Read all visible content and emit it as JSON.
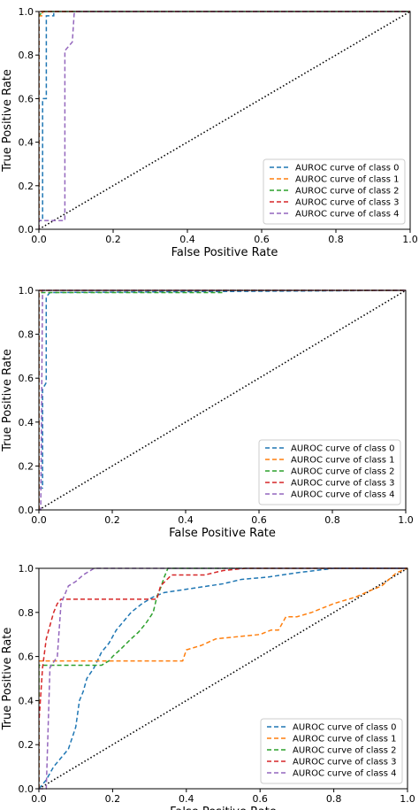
{
  "colors": {
    "class0": "#1f77b4",
    "class1": "#ff7f0e",
    "class2": "#2ca02c",
    "class3": "#d62728",
    "class4": "#9467bd",
    "diagonal": "#000000"
  },
  "chart_data": [
    {
      "type": "line",
      "xlabel": "False Positive Rate",
      "ylabel": "True Positive Rate",
      "xlim": [
        0,
        1
      ],
      "ylim": [
        0,
        1
      ],
      "xticks": [
        "0.0",
        "0.2",
        "0.4",
        "0.6",
        "0.8",
        "1.0"
      ],
      "yticks": [
        "0.0",
        "0.2",
        "0.4",
        "0.6",
        "0.8",
        "1.0"
      ],
      "legend_position": "lower-right",
      "series": [
        {
          "name": "AUROC curve of class 0",
          "color": "#1f77b4",
          "points": [
            [
              0,
              0
            ],
            [
              0,
              0.04
            ],
            [
              0.01,
              0.04
            ],
            [
              0.01,
              0.6
            ],
            [
              0.02,
              0.6
            ],
            [
              0.02,
              0.98
            ],
            [
              0.04,
              0.98
            ],
            [
              0.04,
              1
            ],
            [
              1,
              1
            ]
          ]
        },
        {
          "name": "AUROC curve of class 1",
          "color": "#ff7f0e",
          "points": [
            [
              0,
              0
            ],
            [
              0,
              0.98
            ],
            [
              0.01,
              0.98
            ],
            [
              0.01,
              1
            ],
            [
              1,
              1
            ]
          ]
        },
        {
          "name": "AUROC curve of class 2",
          "color": "#2ca02c",
          "points": [
            [
              0,
              0
            ],
            [
              0,
              0.98
            ],
            [
              0.005,
              0.99
            ],
            [
              0.01,
              1
            ],
            [
              1,
              1
            ]
          ]
        },
        {
          "name": "AUROC curve of class 3",
          "color": "#d62728",
          "points": [
            [
              0,
              0
            ],
            [
              0,
              1
            ],
            [
              1,
              1
            ]
          ]
        },
        {
          "name": "AUROC curve of class 4",
          "color": "#9467bd",
          "points": [
            [
              0,
              0
            ],
            [
              0,
              0.04
            ],
            [
              0.07,
              0.04
            ],
            [
              0.07,
              0.82
            ],
            [
              0.09,
              0.86
            ],
            [
              0.095,
              0.99
            ],
            [
              0.1,
              1
            ],
            [
              1,
              1
            ]
          ]
        }
      ]
    },
    {
      "type": "line",
      "xlabel": "False Positive Rate",
      "ylabel": "True Positive Rate",
      "xlim": [
        0,
        1
      ],
      "ylim": [
        0,
        1
      ],
      "xticks": [
        "0.0",
        "0.2",
        "0.4",
        "0.6",
        "0.8",
        "1.0"
      ],
      "yticks": [
        "0.0",
        "0.2",
        "0.4",
        "0.6",
        "0.8",
        "1.0"
      ],
      "legend_position": "lower-right",
      "series": [
        {
          "name": "AUROC curve of class 0",
          "color": "#1f77b4",
          "points": [
            [
              0,
              0
            ],
            [
              0,
              0.1
            ],
            [
              0.01,
              0.1
            ],
            [
              0.01,
              0.55
            ],
            [
              0.02,
              0.58
            ],
            [
              0.02,
              0.97
            ],
            [
              0.03,
              0.99
            ],
            [
              1,
              1
            ]
          ]
        },
        {
          "name": "AUROC curve of class 1",
          "color": "#ff7f0e",
          "points": [
            [
              0,
              0
            ],
            [
              0,
              0.99
            ],
            [
              0.01,
              1
            ],
            [
              1,
              1
            ]
          ]
        },
        {
          "name": "AUROC curve of class 2",
          "color": "#2ca02c",
          "points": [
            [
              0,
              0
            ],
            [
              0,
              0.99
            ],
            [
              0.5,
              0.99
            ],
            [
              0.5,
              1
            ],
            [
              1,
              1
            ]
          ]
        },
        {
          "name": "AUROC curve of class 3",
          "color": "#d62728",
          "points": [
            [
              0,
              0
            ],
            [
              0,
              1
            ],
            [
              1,
              1
            ]
          ]
        },
        {
          "name": "AUROC curve of class 4",
          "color": "#9467bd",
          "points": [
            [
              0,
              0
            ],
            [
              0.005,
              0
            ],
            [
              0.01,
              1
            ],
            [
              1,
              1
            ]
          ]
        }
      ]
    },
    {
      "type": "line",
      "xlabel": "False Positive Rate",
      "ylabel": "True Positive Rate",
      "xlim": [
        0,
        1
      ],
      "ylim": [
        0,
        1
      ],
      "xticks": [
        "0.0",
        "0.2",
        "0.4",
        "0.6",
        "0.8",
        "1.0"
      ],
      "yticks": [
        "0.0",
        "0.2",
        "0.4",
        "0.6",
        "0.8",
        "1.0"
      ],
      "legend_position": "lower-right",
      "series": [
        {
          "name": "AUROC curve of class 0",
          "color": "#1f77b4",
          "points": [
            [
              0,
              0
            ],
            [
              0.02,
              0.04
            ],
            [
              0.04,
              0.1
            ],
            [
              0.06,
              0.14
            ],
            [
              0.08,
              0.18
            ],
            [
              0.1,
              0.28
            ],
            [
              0.11,
              0.4
            ],
            [
              0.12,
              0.44
            ],
            [
              0.13,
              0.5
            ],
            [
              0.15,
              0.55
            ],
            [
              0.17,
              0.62
            ],
            [
              0.19,
              0.66
            ],
            [
              0.21,
              0.72
            ],
            [
              0.23,
              0.76
            ],
            [
              0.25,
              0.8
            ],
            [
              0.28,
              0.84
            ],
            [
              0.31,
              0.87
            ],
            [
              0.34,
              0.89
            ],
            [
              0.38,
              0.9
            ],
            [
              0.42,
              0.91
            ],
            [
              0.46,
              0.92
            ],
            [
              0.5,
              0.93
            ],
            [
              0.55,
              0.95
            ],
            [
              0.62,
              0.96
            ],
            [
              0.7,
              0.98
            ],
            [
              0.8,
              1
            ],
            [
              1,
              1
            ]
          ]
        },
        {
          "name": "AUROC curve of class 1",
          "color": "#ff7f0e",
          "points": [
            [
              0,
              0
            ],
            [
              0,
              0.58
            ],
            [
              0.39,
              0.58
            ],
            [
              0.4,
              0.63
            ],
            [
              0.44,
              0.65
            ],
            [
              0.48,
              0.68
            ],
            [
              0.54,
              0.69
            ],
            [
              0.6,
              0.7
            ],
            [
              0.63,
              0.72
            ],
            [
              0.65,
              0.72
            ],
            [
              0.67,
              0.78
            ],
            [
              0.7,
              0.78
            ],
            [
              0.74,
              0.8
            ],
            [
              0.8,
              0.84
            ],
            [
              0.86,
              0.87
            ],
            [
              0.9,
              0.9
            ],
            [
              0.93,
              0.92
            ],
            [
              0.95,
              0.95
            ],
            [
              0.97,
              0.98
            ],
            [
              1,
              1
            ]
          ]
        },
        {
          "name": "AUROC curve of class 2",
          "color": "#2ca02c",
          "points": [
            [
              0,
              0
            ],
            [
              0,
              0.56
            ],
            [
              0.17,
              0.56
            ],
            [
              0.19,
              0.58
            ],
            [
              0.2,
              0.6
            ],
            [
              0.22,
              0.63
            ],
            [
              0.25,
              0.68
            ],
            [
              0.27,
              0.71
            ],
            [
              0.29,
              0.75
            ],
            [
              0.31,
              0.8
            ],
            [
              0.32,
              0.87
            ],
            [
              0.33,
              0.91
            ],
            [
              0.34,
              0.96
            ],
            [
              0.35,
              1
            ],
            [
              1,
              1
            ]
          ]
        },
        {
          "name": "AUROC curve of class 3",
          "color": "#d62728",
          "points": [
            [
              0,
              0
            ],
            [
              0,
              0.3
            ],
            [
              0.01,
              0.55
            ],
            [
              0.02,
              0.68
            ],
            [
              0.03,
              0.74
            ],
            [
              0.04,
              0.8
            ],
            [
              0.05,
              0.84
            ],
            [
              0.06,
              0.86
            ],
            [
              0.32,
              0.86
            ],
            [
              0.33,
              0.92
            ],
            [
              0.36,
              0.97
            ],
            [
              0.45,
              0.97
            ],
            [
              0.5,
              0.99
            ],
            [
              0.56,
              1
            ],
            [
              1,
              1
            ]
          ]
        },
        {
          "name": "AUROC curve of class 4",
          "color": "#9467bd",
          "points": [
            [
              0,
              0
            ],
            [
              0.02,
              0
            ],
            [
              0.03,
              0.55
            ],
            [
              0.05,
              0.6
            ],
            [
              0.06,
              0.84
            ],
            [
              0.08,
              0.92
            ],
            [
              0.1,
              0.94
            ],
            [
              0.12,
              0.97
            ],
            [
              0.15,
              1
            ],
            [
              1,
              1
            ]
          ]
        }
      ]
    }
  ]
}
